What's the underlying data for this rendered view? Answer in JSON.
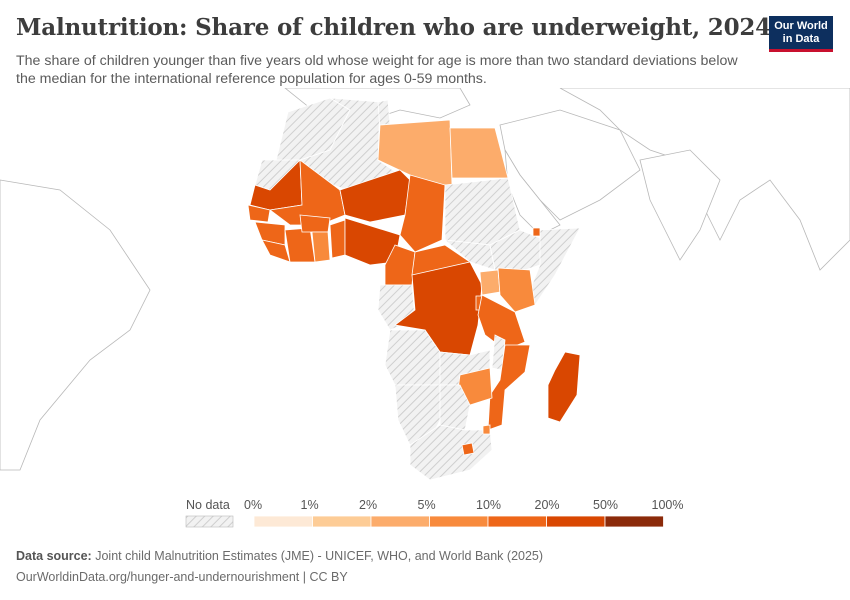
{
  "header": {
    "title": "Malnutrition: Share of children who are underweight, 2024",
    "subtitle": "The share of children younger than five years old whose weight for age is more than two standard deviations below the median for the international reference population for ages 0-59 months."
  },
  "logo": {
    "line1": "Our World",
    "line2": "in Data"
  },
  "legend": {
    "no_data_label": "No data",
    "ticks": [
      "0%",
      "1%",
      "2%",
      "5%",
      "10%",
      "20%",
      "50%",
      "100%"
    ],
    "colors": [
      "#fde9d6",
      "#fdcc96",
      "#fcac6b",
      "#f88a3c",
      "#ee6618",
      "#d94701",
      "#8b2a0a"
    ]
  },
  "footer": {
    "source_label": "Data source:",
    "source_text": "Joint child Malnutrition Estimates (JME) - UNICEF, WHO, and World Bank (2025)",
    "url_text": "OurWorldinData.org/hunger-and-undernourishment | CC BY"
  }
}
